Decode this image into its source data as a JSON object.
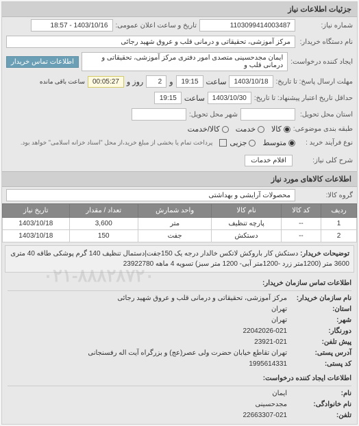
{
  "panel_title": "جزئیات اطلاعات نیاز",
  "fields": {
    "request_number_label": "شماره نیاز:",
    "request_number": "1103099414003487",
    "announce_datetime_label": "تاریخ و ساعت اعلان عمومی:",
    "announce_datetime": "1403/10/16 - 18:57",
    "buyer_org_label": "نام دستگاه خریدار:",
    "buyer_org": "مرکز آموزشی، تحقیقاتی و درمانی قلب و عروق شهید رجائی",
    "creator_label": "ایجاد کننده درخواست:",
    "creator": "ایمان مجدحسینی متصدی امور دفتری مرکز آموزشی، تحقیقاتی و درمانی قلب و",
    "contact_btn": "اطلاعات تماس خریدار",
    "deadline_label": "مهلت ارسال پاسخ: تا تاریخ:",
    "deadline_date": "1403/10/18",
    "deadline_time_label": "ساعت",
    "deadline_time": "19:15",
    "day_label": "و",
    "day_value": "2",
    "day_suffix": "روز و",
    "timer": "00:05:27",
    "timer_suffix": "ساعت باقی مانده",
    "validity_label": "حداقل تاریخ اعتبار پیشنهاد: تا تاریخ:",
    "validity_date": "1403/10/30",
    "validity_time": "19:15",
    "delivery_province_label": "استان محل تحویل:",
    "delivery_city_label": "شهر محل تحویل:",
    "budget_label": "طبقه بندی موضوعی:",
    "budget_r1": "کالا",
    "budget_r2": "خدمت",
    "budget_r3": "کالا/خدمت",
    "process_label": "نوع فرآیند خرید :",
    "process_r1": "متوسط",
    "process_r2": "جزیی",
    "process_note": "پرداخت تمام یا بخشی از مبلغ خرید،از محل \"اسناد خزانه اسلامی\" خواهد بود.",
    "general_desc_label": "شرح کلی نیاز:",
    "general_desc": "اقلام خدمات",
    "items_section": "اطلاعات کالاهای مورد نیاز",
    "group_label": "گروه کالا:",
    "group_value": "محصولات آرایشی و بهداشتی"
  },
  "table": {
    "headers": [
      "ردیف",
      "کد کالا",
      "نام کالا",
      "واحد شمارش",
      "تعداد / مقدار",
      "تاریخ نیاز"
    ],
    "rows": [
      [
        "1",
        "--",
        "پارچه تنظیف",
        "متر",
        "3,600",
        "1403/10/18"
      ],
      [
        "2",
        "--",
        "دستکش",
        "جفت",
        "150",
        "1403/10/18"
      ]
    ]
  },
  "description": {
    "label": "توضیحات خریدار:",
    "text": "دستکش کار باروکش لاتکس خالدار درجه یک 150جفت|دستمال تنظیف 140 گرم پوشکی طاقه 40 متری 3600 متر (1200متر زرد -1200متر آبی- 1200 متر سبز) تسویه 4 ماهه 23922780"
  },
  "contact": {
    "section_title": "اطلاعات تماس سازمان خریدار:",
    "org_label": "نام سازمان خریدار:",
    "org": "مرکز آموزشی، تحقیقاتی و درمانی قلب و عروق شهید رجائی",
    "province_label": "استان:",
    "province": "تهران",
    "city_label": "شهر:",
    "city": "تهران",
    "fax_label": "دورنگار:",
    "fax": "22042026-021",
    "phone_label": "پیش تلفن:",
    "phone": "23921-021",
    "postal_label": "کد پستی:",
    "postal": "1995614331",
    "address_label": "آدرس پستی:",
    "address": "تهران تقاطع خیابان حضرت ولی عصر(عج) و بزرگراه آیت اله رفسنجانی",
    "creator_section": "اطلاعات ایجاد کننده درخواست:",
    "name_label": "نام:",
    "name": "ایمان",
    "lastname_label": "نام خانوادگی:",
    "lastname": "مجدحسینی",
    "tel_label": "تلفن:",
    "tel": "22663307-021"
  },
  "watermark": "۰۲۱-۸۸۸۲۸۷۲۰",
  "colors": {
    "panel_bg": "#e8e8e8",
    "header_bg": "#d0d0d0",
    "input_bg": "#ffffff",
    "th_bg": "#888888",
    "btn_bg": "#6a9fb5",
    "timer_bg": "#fffae0"
  }
}
